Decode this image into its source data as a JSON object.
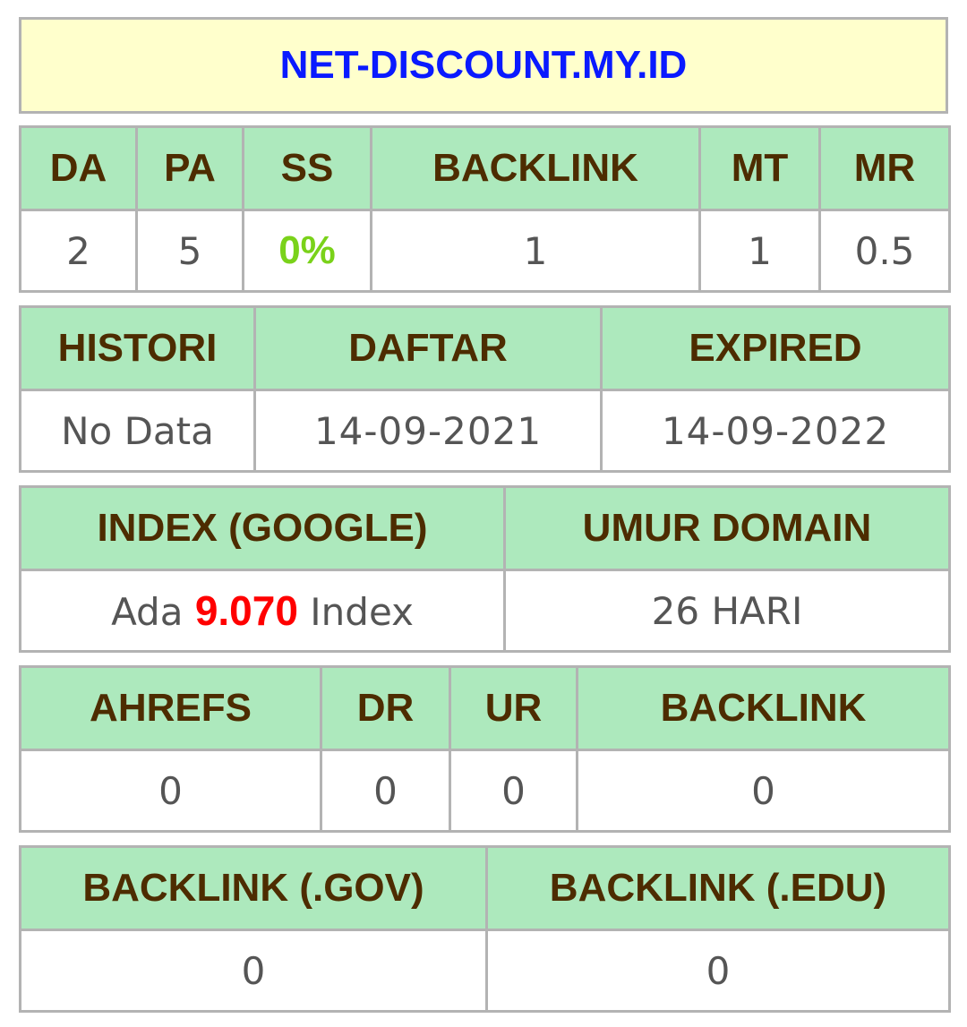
{
  "domain": {
    "name": "NET-DISCOUNT.MY.ID",
    "link_color": "#0a1aff",
    "title_bg": "#ffffcc"
  },
  "moz": {
    "headers": [
      "DA",
      "PA",
      "SS",
      "BACKLINK",
      "MT",
      "MR"
    ],
    "values": [
      "2",
      "5",
      "0%",
      "1",
      "1",
      "0.5"
    ]
  },
  "whois": {
    "headers": [
      "HISTORI",
      "DAFTAR",
      "EXPIRED"
    ],
    "values": [
      "No Data",
      "14-09-2021",
      "14-09-2022"
    ]
  },
  "index": {
    "headers": [
      "INDEX (GOOGLE)",
      "UMUR DOMAIN"
    ],
    "index_prefix": "Ada",
    "index_count": "9.070",
    "index_suffix": "Index",
    "domain_age": "26 HARI"
  },
  "ahrefs": {
    "headers": [
      "AHREFS",
      "DR",
      "UR",
      "BACKLINK"
    ],
    "values": [
      "0",
      "0",
      "0",
      "0"
    ]
  },
  "special_backlinks": {
    "headers": [
      "BACKLINK (.GOV)",
      "BACKLINK (.EDU)"
    ],
    "values": [
      "0",
      "0"
    ]
  },
  "colors": {
    "header_bg": "#ade9bd",
    "header_text": "#4d2c00",
    "border": "#b3b3b3",
    "ss_green": "#7ad21a",
    "index_red": "#ff0000"
  }
}
